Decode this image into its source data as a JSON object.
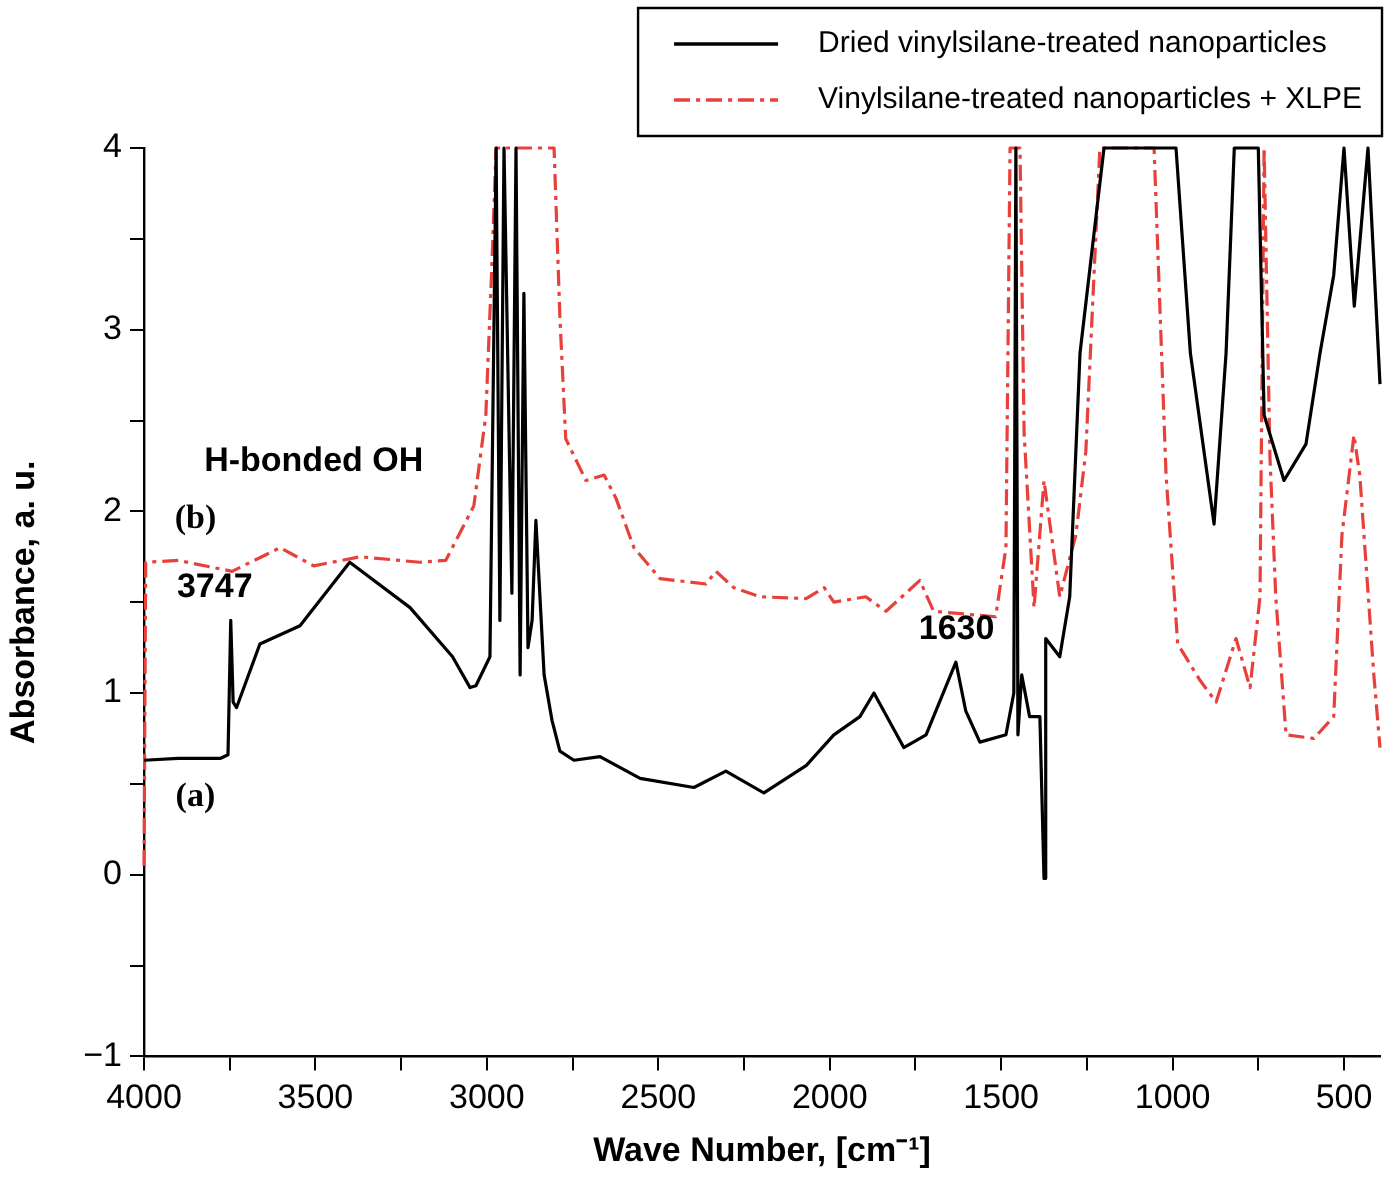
{
  "chart_data": {
    "type": "line",
    "xlabel": "Wave Number, [cm⁻¹]",
    "ylabel": "Absorbance, a. u.",
    "xlim": [
      4000,
      395
    ],
    "ylim": [
      -1,
      4
    ],
    "xticks": [
      4000,
      {
        "value": 3750,
        "label": null
      },
      3500,
      {
        "value": 3250,
        "label": null
      },
      3000,
      {
        "value": 2750,
        "label": null
      },
      2500,
      {
        "value": 2250,
        "label": null
      },
      2000,
      {
        "value": 1750,
        "label": null
      },
      1500,
      {
        "value": 1250,
        "label": null
      },
      1000,
      {
        "value": 750,
        "label": null
      },
      500
    ],
    "yticks": [
      -1,
      {
        "value": -0.5,
        "label": null
      },
      0,
      {
        "value": 0.5,
        "label": null
      },
      1,
      {
        "value": 1.5,
        "label": null
      },
      2,
      {
        "value": 2.5,
        "label": null
      },
      3,
      {
        "value": 3.5,
        "label": null
      },
      4
    ],
    "grid": false,
    "legend": "top right",
    "marker": "none",
    "annotations": [
      {
        "text": "H-bonded OH",
        "x": 3400,
        "y": 1.72
      },
      {
        "text": "(b)",
        "x": 3850,
        "y": 1.73
      },
      {
        "text": "3747",
        "x": 3747,
        "y": 1.4
      },
      {
        "text": "(a)",
        "x": 3850,
        "y": 0.64
      },
      {
        "text": "1630",
        "x": 1630,
        "y": 1.17
      }
    ],
    "series": [
      {
        "name": "Dried vinylsilane-treated nanoparticles",
        "color": "#000000",
        "line_style": "solid",
        "x": [
          4000,
          3900,
          3778,
          3755,
          3747,
          3740,
          3730,
          3662,
          3545,
          3400,
          3224,
          3100,
          3049,
          3032,
          2991,
          2973,
          2962,
          2950,
          2927,
          2915,
          2903,
          2892,
          2880,
          2868,
          2857,
          2833,
          2810,
          2787,
          2746,
          2670,
          2553,
          2396,
          2303,
          2192,
          2069,
          1988,
          1912,
          1871,
          1784,
          1719,
          1632,
          1603,
          1562,
          1486,
          1463,
          1457,
          1451,
          1440,
          1417,
          1387,
          1375,
          1370,
          1329,
          1300,
          1270,
          1200,
          1100,
          1000,
          990,
          948,
          879,
          844,
          820,
          770,
          750,
          733,
          675,
          611,
          570,
          530,
          500,
          470,
          430,
          395
        ],
        "values": [
          0.63,
          0.64,
          0.64,
          0.66,
          1.4,
          0.95,
          0.92,
          1.27,
          1.37,
          1.72,
          1.47,
          1.2,
          1.03,
          1.04,
          1.2,
          4,
          1.4,
          4,
          1.55,
          4,
          1.1,
          3.2,
          1.25,
          1.4,
          1.95,
          1.1,
          0.85,
          0.68,
          0.63,
          0.65,
          0.53,
          0.48,
          0.57,
          0.45,
          0.6,
          0.77,
          0.87,
          1.0,
          0.7,
          0.77,
          1.17,
          0.9,
          0.73,
          0.77,
          1.0,
          4,
          0.77,
          1.1,
          0.87,
          0.87,
          -0.02,
          1.3,
          1.2,
          1.53,
          2.87,
          4,
          4,
          4,
          4,
          2.87,
          1.93,
          2.87,
          4,
          4,
          4,
          2.53,
          2.17,
          2.37,
          2.87,
          3.3,
          4,
          3.13,
          4,
          2.7
        ]
      },
      {
        "name": "Vinylsilane-treated nanoparticles + XLPE",
        "color": "#e8413c",
        "line_style": "dashed",
        "x": [
          4000,
          3995,
          3900,
          3743,
          3603,
          3505,
          3370,
          3196,
          3120,
          3038,
          3003,
          2985,
          2973,
          2804,
          2787,
          2770,
          2711,
          2658,
          2623,
          2571,
          2495,
          2361,
          2332,
          2280,
          2204,
          2069,
          2016,
          1988,
          1895,
          1836,
          1737,
          1697,
          1516,
          1486,
          1474,
          1445,
          1433,
          1404,
          1375,
          1329,
          1282,
          1253,
          1212,
          1054,
          1019,
          985,
          920,
          873,
          815,
          774,
          745,
          733,
          716,
          699,
          669,
          588,
          530,
          506,
          471,
          454,
          413,
          395
        ],
        "values": [
          0.05,
          1.72,
          1.73,
          1.67,
          1.8,
          1.7,
          1.75,
          1.72,
          1.73,
          2.03,
          2.53,
          3.37,
          4,
          4,
          3.07,
          2.4,
          2.17,
          2.2,
          2.07,
          1.8,
          1.63,
          1.6,
          1.67,
          1.58,
          1.53,
          1.52,
          1.58,
          1.5,
          1.53,
          1.45,
          1.62,
          1.45,
          1.42,
          1.8,
          4,
          4,
          2.43,
          1.47,
          2.17,
          1.53,
          1.87,
          2.33,
          4,
          4,
          2.2,
          1.27,
          1.07,
          0.95,
          1.3,
          1.03,
          1.53,
          4,
          2.3,
          1.53,
          0.77,
          0.75,
          0.87,
          1.87,
          2.42,
          2.2,
          1.1,
          0.7
        ]
      }
    ]
  }
}
